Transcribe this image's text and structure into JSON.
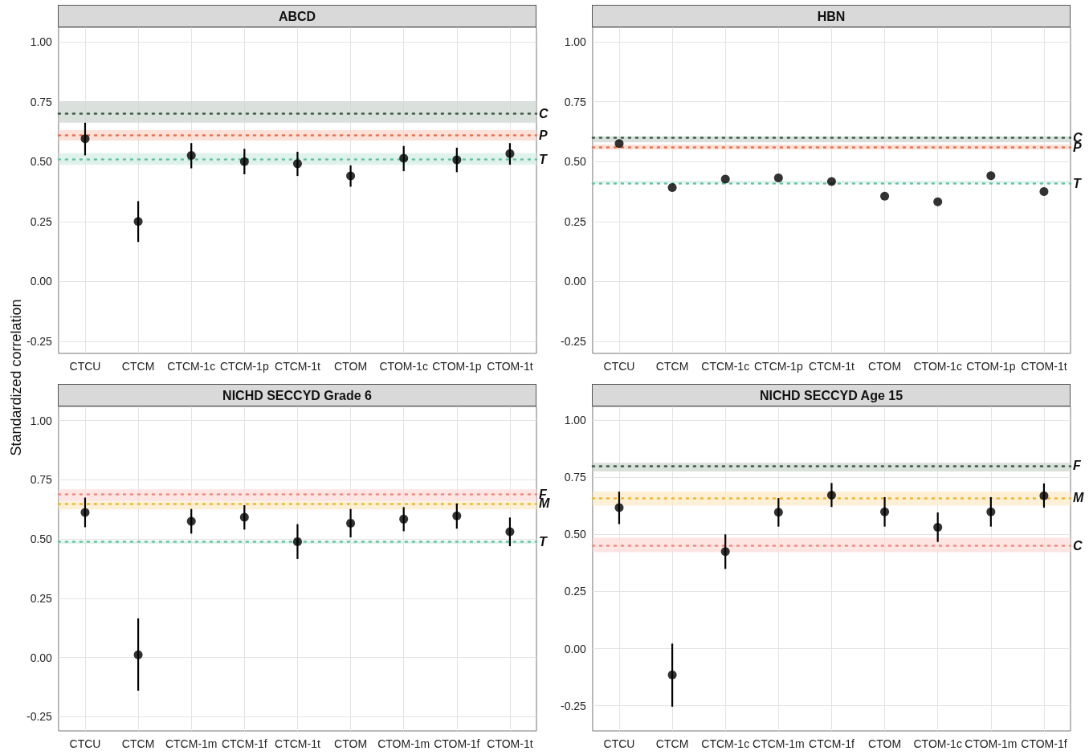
{
  "chart_data": [
    {
      "type": "scatter",
      "title": "ABCD",
      "ylabel": "Standardized correlation",
      "categories": [
        "CTCU",
        "CTCM",
        "CTCM-1c",
        "CTCM-1p",
        "CTCM-1t",
        "CTOM",
        "CTOM-1c",
        "CTOM-1p",
        "CTOM-1t"
      ],
      "values": [
        0.595,
        0.25,
        0.526,
        0.5,
        0.491,
        0.44,
        0.514,
        0.507,
        0.533
      ],
      "errors": [
        [
          0.526,
          0.662
        ],
        [
          0.165,
          0.335
        ],
        [
          0.472,
          0.577
        ],
        [
          0.447,
          0.553
        ],
        [
          0.44,
          0.541
        ],
        [
          0.395,
          0.484
        ],
        [
          0.46,
          0.565
        ],
        [
          0.456,
          0.558
        ],
        [
          0.487,
          0.577
        ]
      ],
      "color": "#000000",
      "marker": "circle",
      "ylim": [
        -0.3,
        1.06
      ],
      "yticks": [
        {
          "value": -0.25,
          "label": "-0.25"
        },
        {
          "value": 0,
          "label": "0.00"
        },
        {
          "value": 0.25,
          "label": "0.25"
        },
        {
          "value": 0.5,
          "label": "0.50"
        },
        {
          "value": 0.75,
          "label": "0.75"
        },
        {
          "value": 1,
          "label": "1.00"
        }
      ],
      "ref_lines": [
        {
          "axis": "y",
          "value": 0.705,
          "label": "C",
          "color": "#3b5a47",
          "line_style": "dotted"
        },
        {
          "axis": "y",
          "value": 0.609,
          "label": "P",
          "color": "#e8704f",
          "line_style": "dotted"
        },
        {
          "axis": "y",
          "value": 0.513,
          "label": "T",
          "color": "#66c2a5",
          "line_style": "dotted"
        }
      ],
      "bands": [
        {
          "axis": "y",
          "from": 0.662,
          "to": 0.751,
          "color": "#cdd6cf"
        },
        {
          "axis": "y",
          "from": 0.588,
          "to": 0.631,
          "color": "#fbd7cb"
        },
        {
          "axis": "y",
          "from": 0.486,
          "to": 0.535,
          "color": "#d6eee6"
        }
      ],
      "grid": true
    },
    {
      "type": "scatter",
      "title": "HBN",
      "categories": [
        "CTCU",
        "CTCM",
        "CTCM-1c",
        "CTCM-1p",
        "CTCM-1t",
        "CTOM",
        "CTOM-1c",
        "CTOM-1p",
        "CTOM-1t"
      ],
      "values": [
        0.575,
        0.392,
        0.427,
        0.432,
        0.417,
        0.356,
        0.332,
        0.441,
        0.375
      ],
      "color": "#000000",
      "marker": "circle",
      "ylim": [
        -0.3,
        1.06
      ],
      "yticks": [
        {
          "value": -0.25,
          "label": "-0.25"
        },
        {
          "value": 0,
          "label": "0.00"
        },
        {
          "value": 0.25,
          "label": "0.25"
        },
        {
          "value": 0.5,
          "label": "0.50"
        },
        {
          "value": 0.75,
          "label": "0.75"
        },
        {
          "value": 1,
          "label": "1.00"
        }
      ],
      "ref_lines": [
        {
          "axis": "y",
          "value": 0.596,
          "label": "C",
          "color": "#3b5a47",
          "line_style": "dotted"
        },
        {
          "axis": "y",
          "value": 0.563,
          "label": "P",
          "color": "#e8704f",
          "line_style": "dotted"
        },
        {
          "axis": "y",
          "value": 0.415,
          "label": "T",
          "color": "#66c2a5",
          "line_style": "dotted"
        }
      ],
      "bands": [
        {
          "axis": "y",
          "from": 0.58,
          "to": 0.605,
          "color": "#cdd6cf"
        },
        {
          "axis": "y",
          "from": 0.55,
          "to": 0.571,
          "color": "#fbd7cb"
        },
        {
          "axis": "y",
          "from": 0.409,
          "to": 0.42,
          "color": "#d6eee6"
        }
      ],
      "grid": true
    },
    {
      "type": "scatter",
      "title": "NICHD SECCYD Grade 6",
      "categories": [
        "CTCU",
        "CTCM",
        "CTCM-1m",
        "CTCM-1f",
        "CTCM-1t",
        "CTOM",
        "CTOM-1m",
        "CTOM-1f",
        "CTOM-1t"
      ],
      "values": [
        0.612,
        0.011,
        0.575,
        0.592,
        0.489,
        0.567,
        0.584,
        0.598,
        0.531
      ],
      "errors": [
        [
          0.55,
          0.675
        ],
        [
          -0.14,
          0.165
        ],
        [
          0.523,
          0.627
        ],
        [
          0.54,
          0.643
        ],
        [
          0.416,
          0.563
        ],
        [
          0.507,
          0.627
        ],
        [
          0.533,
          0.635
        ],
        [
          0.544,
          0.65
        ],
        [
          0.47,
          0.591
        ]
      ],
      "color": "#000000",
      "marker": "circle",
      "ylim": [
        -0.31,
        1.06
      ],
      "yticks": [
        {
          "value": -0.25,
          "label": "-0.25"
        },
        {
          "value": 0,
          "label": "0.00"
        },
        {
          "value": 0.25,
          "label": "0.25"
        },
        {
          "value": 0.5,
          "label": "0.50"
        },
        {
          "value": 0.75,
          "label": "0.75"
        },
        {
          "value": 1,
          "label": "1.00"
        }
      ],
      "ref_lines": [
        {
          "axis": "y",
          "value": 0.685,
          "label": "F",
          "color": "#f08a80",
          "line_style": "dotted"
        },
        {
          "axis": "y",
          "value": 0.646,
          "label": "M",
          "color": "#f0b429",
          "line_style": "dotted"
        },
        {
          "axis": "y",
          "value": 0.486,
          "label": "T",
          "color": "#66c2a5",
          "line_style": "dotted"
        }
      ],
      "bands": [
        {
          "axis": "y",
          "from": 0.66,
          "to": 0.71,
          "color": "#fbdcd9"
        },
        {
          "axis": "y",
          "from": 0.625,
          "to": 0.658,
          "color": "#fdebc8"
        },
        {
          "axis": "y",
          "from": 0.48,
          "to": 0.492,
          "color": "#d6eee6"
        }
      ],
      "grid": true
    },
    {
      "type": "scatter",
      "title": "NICHD SECCYD Age 15",
      "categories": [
        "CTCU",
        "CTCM",
        "CTCM-1c",
        "CTCM-1m",
        "CTCM-1f",
        "CTOM",
        "CTOM-1c",
        "CTOM-1m",
        "CTOM-1f"
      ],
      "values": [
        0.617,
        -0.115,
        0.425,
        0.597,
        0.672,
        0.599,
        0.531,
        0.599,
        0.669
      ],
      "errors": [
        [
          0.545,
          0.687
        ],
        [
          -0.254,
          0.022
        ],
        [
          0.349,
          0.5
        ],
        [
          0.534,
          0.659
        ],
        [
          0.62,
          0.725
        ],
        [
          0.534,
          0.663
        ],
        [
          0.467,
          0.596
        ],
        [
          0.534,
          0.663
        ],
        [
          0.617,
          0.723
        ]
      ],
      "color": "#000000",
      "marker": "circle",
      "ylim": [
        -0.36,
        1.06
      ],
      "yticks": [
        {
          "value": -0.25,
          "label": "-0.25"
        },
        {
          "value": 0,
          "label": "0.00"
        },
        {
          "value": 0.25,
          "label": "0.25"
        },
        {
          "value": 0.5,
          "label": "0.50"
        },
        {
          "value": 0.75,
          "label": "0.75"
        },
        {
          "value": 1,
          "label": "1.00"
        }
      ],
      "ref_lines": [
        {
          "axis": "y",
          "value": 0.795,
          "label": "F",
          "color": "#3b5a47",
          "line_style": "dotted"
        },
        {
          "axis": "y",
          "value": 0.659,
          "label": "M",
          "color": "#f0b429",
          "line_style": "dotted"
        },
        {
          "axis": "y",
          "value": 0.454,
          "label": "C",
          "color": "#f08a80",
          "line_style": "dotted"
        }
      ],
      "bands": [
        {
          "axis": "y",
          "from": 0.775,
          "to": 0.813,
          "color": "#cdd6cf"
        },
        {
          "axis": "y",
          "from": 0.626,
          "to": 0.687,
          "color": "#fdebc8"
        },
        {
          "axis": "y",
          "from": 0.422,
          "to": 0.485,
          "color": "#fbdcd9"
        }
      ],
      "grid": true
    }
  ]
}
